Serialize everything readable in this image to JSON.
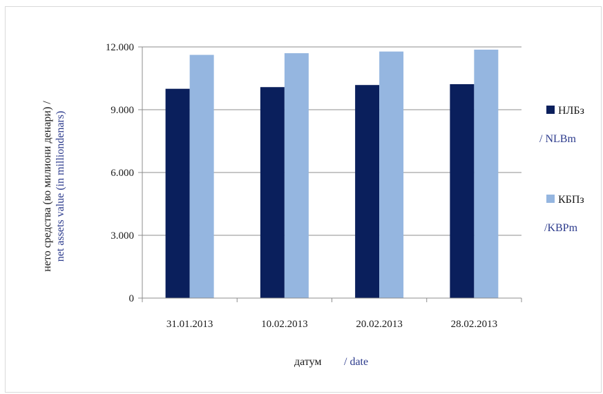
{
  "chart_data": {
    "type": "bar",
    "categories": [
      "31.01.2013",
      "10.02.2013",
      "20.02.2013",
      "28.02.2013"
    ],
    "series": [
      {
        "name": "НЛБз",
        "name_en": "/ NLBm",
        "color": "#0a1f5c",
        "values": [
          10000,
          10080,
          10180,
          10220
        ]
      },
      {
        "name": "КБПз",
        "name_en": "/KBPm",
        "color": "#95b6e0",
        "values": [
          11620,
          11700,
          11780,
          11870
        ]
      }
    ],
    "yticks": [
      "0",
      "3.000",
      "6.000",
      "9.000",
      "12.000"
    ],
    "ytick_values": [
      0,
      3000,
      6000,
      9000,
      12000
    ],
    "ylim": [
      0,
      12000
    ],
    "grid": true,
    "xlabel": {
      "ru": "датум",
      "en": "/ date"
    },
    "ylabel": {
      "ru": "нето средства (во милиони денари) /",
      "en": "net assets value (in milliondenars)"
    },
    "legend_position": "right"
  }
}
